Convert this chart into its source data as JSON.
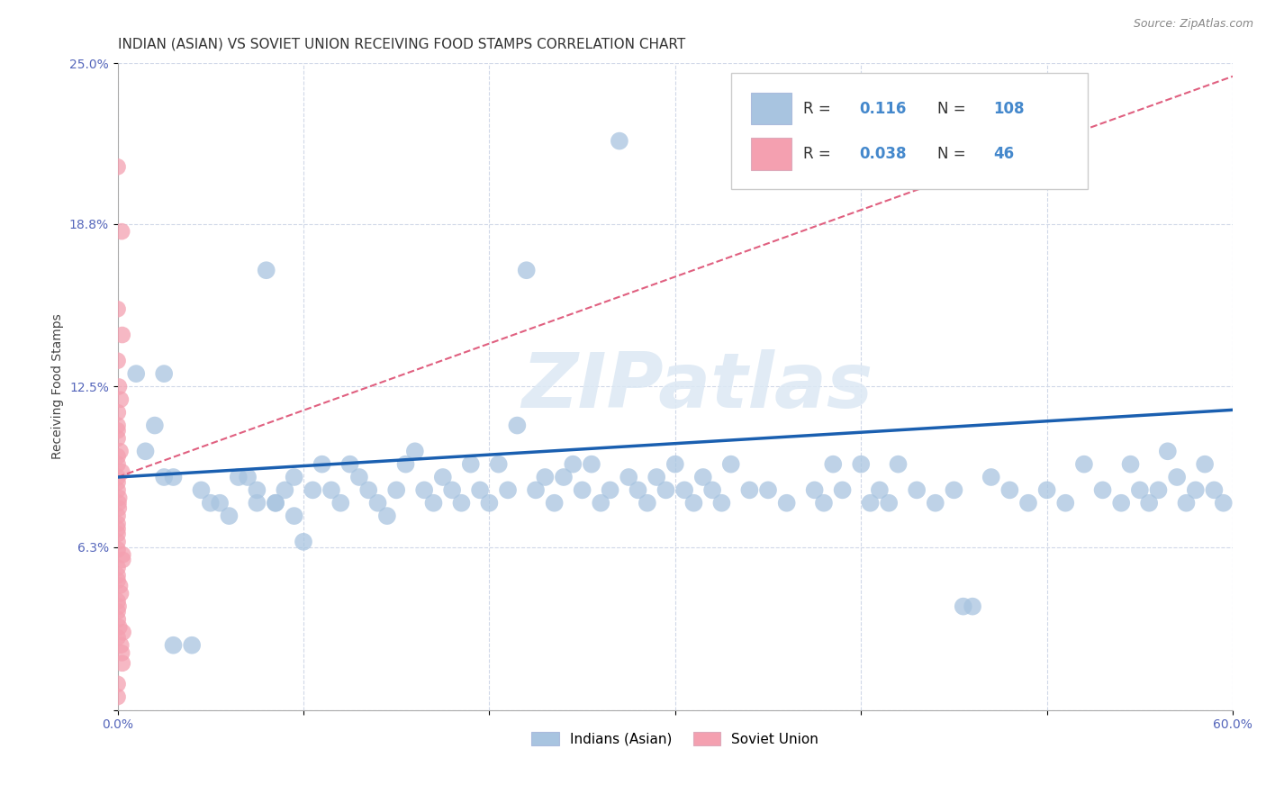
{
  "title": "INDIAN (ASIAN) VS SOVIET UNION RECEIVING FOOD STAMPS CORRELATION CHART",
  "source": "Source: ZipAtlas.com",
  "ylabel": "Receiving Food Stamps",
  "xlim": [
    0.0,
    0.6
  ],
  "ylim": [
    0.0,
    0.25
  ],
  "xtick_positions": [
    0.0,
    0.1,
    0.2,
    0.3,
    0.4,
    0.5,
    0.6
  ],
  "xticklabels": [
    "0.0%",
    "",
    "",
    "",
    "",
    "",
    "60.0%"
  ],
  "ytick_positions": [
    0.0,
    0.063,
    0.125,
    0.188,
    0.25
  ],
  "yticklabels": [
    "",
    "6.3%",
    "12.5%",
    "18.8%",
    "25.0%"
  ],
  "watermark": "ZIPatlas",
  "legend_r1": "R = ",
  "legend_val1": "0.116",
  "legend_n1": "N = ",
  "legend_nval1": "108",
  "legend_r2": "R = ",
  "legend_val2": "0.038",
  "legend_n2": "N = ",
  "legend_nval2": "46",
  "color_indian": "#a8c4e0",
  "color_soviet": "#f4a0b0",
  "trendline_indian_color": "#1a5fb0",
  "trendline_soviet_color": "#e06080",
  "background_color": "#ffffff",
  "title_fontsize": 11,
  "axis_label_fontsize": 10,
  "tick_fontsize": 10,
  "legend_fontsize": 12
}
